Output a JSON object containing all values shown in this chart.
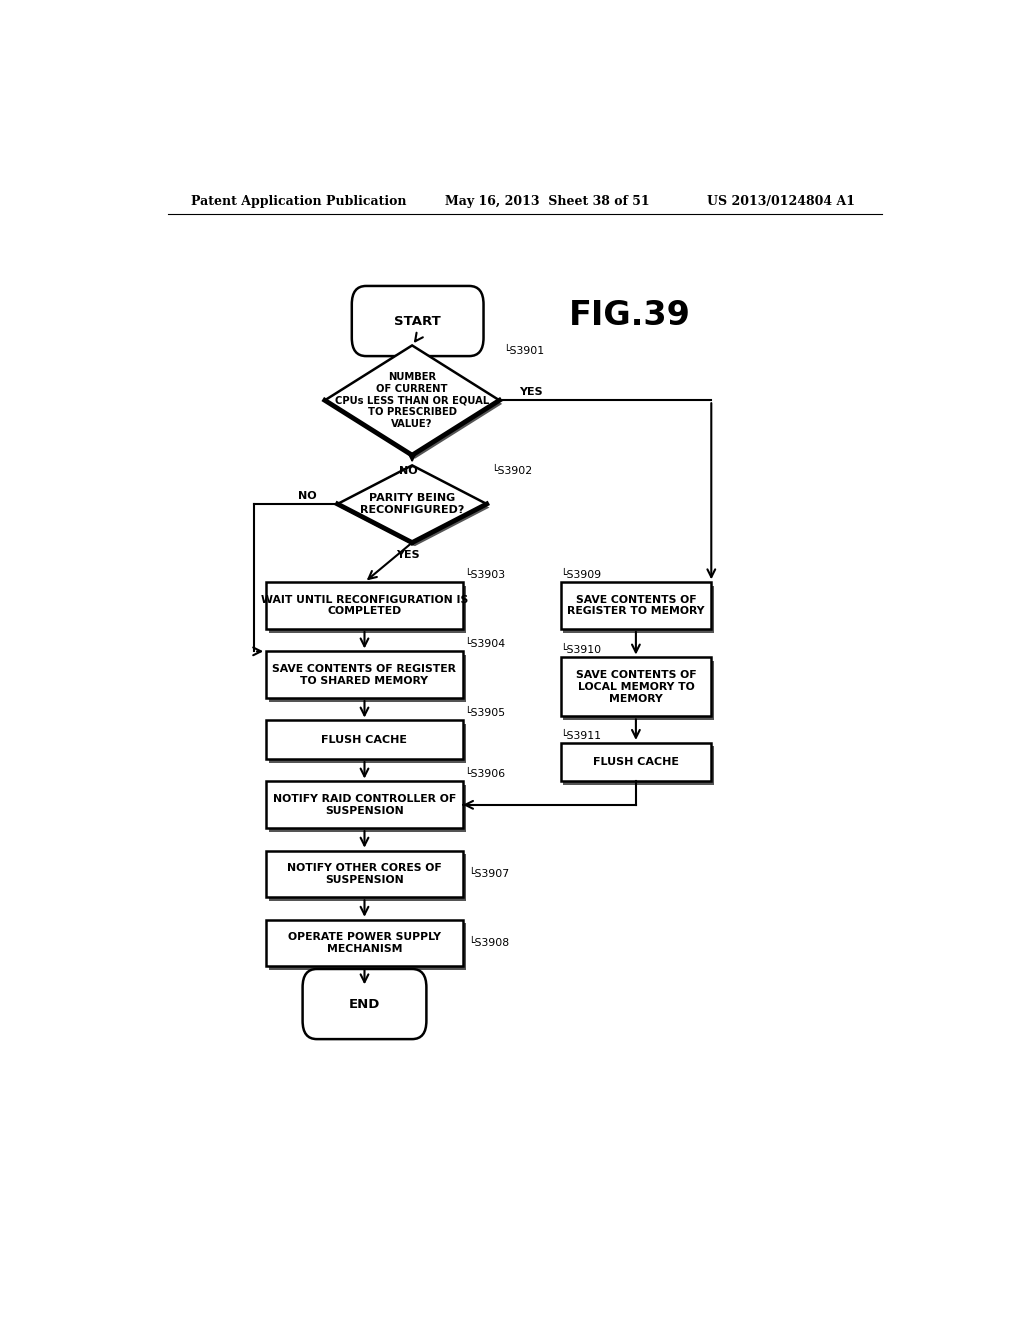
{
  "header_left": "Patent Application Publication",
  "header_mid": "May 16, 2013  Sheet 38 of 51",
  "header_right": "US 2013/0124804 A1",
  "fig_label": "FIG.39",
  "background_color": "#ffffff"
}
